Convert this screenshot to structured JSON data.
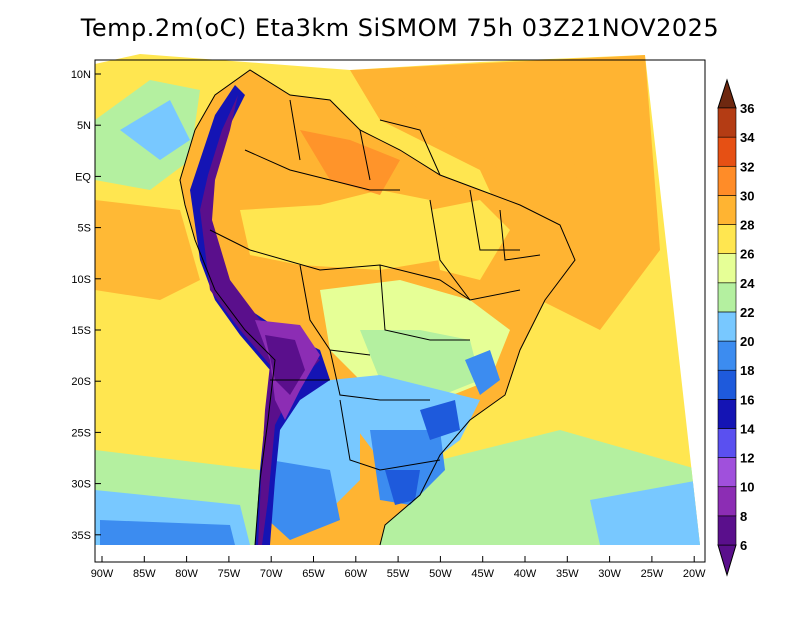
{
  "title": "Temp.2m(oC) Eta3km SiSMOM 75h 03Z21NOV2025",
  "lat_ticks": [
    "10N",
    "5N",
    "EQ",
    "5S",
    "10S",
    "15S",
    "20S",
    "25S",
    "30S",
    "35S"
  ],
  "lon_ticks": [
    "90W",
    "85W",
    "80W",
    "75W",
    "70W",
    "65W",
    "60W",
    "55W",
    "50W",
    "45W",
    "40W",
    "35W",
    "30W",
    "25W",
    "20W"
  ],
  "colorbar": {
    "unit": "oC",
    "labels": [
      "6",
      "8",
      "10",
      "12",
      "14",
      "16",
      "18",
      "20",
      "22",
      "24",
      "26",
      "28",
      "30",
      "32",
      "34",
      "36"
    ],
    "colors": [
      "#5a0f8c",
      "#8c2db4",
      "#a050dc",
      "#5a50f0",
      "#1414b4",
      "#1e5adc",
      "#3c8cf0",
      "#78c8ff",
      "#b4f0a0",
      "#e6ff96",
      "#ffe650",
      "#ffb432",
      "#ff8c28",
      "#e65014",
      "#b43c14",
      "#6e2810"
    ]
  },
  "domain": {
    "lon_range": [
      -90,
      -20
    ],
    "lat_range": [
      -38,
      11
    ]
  }
}
